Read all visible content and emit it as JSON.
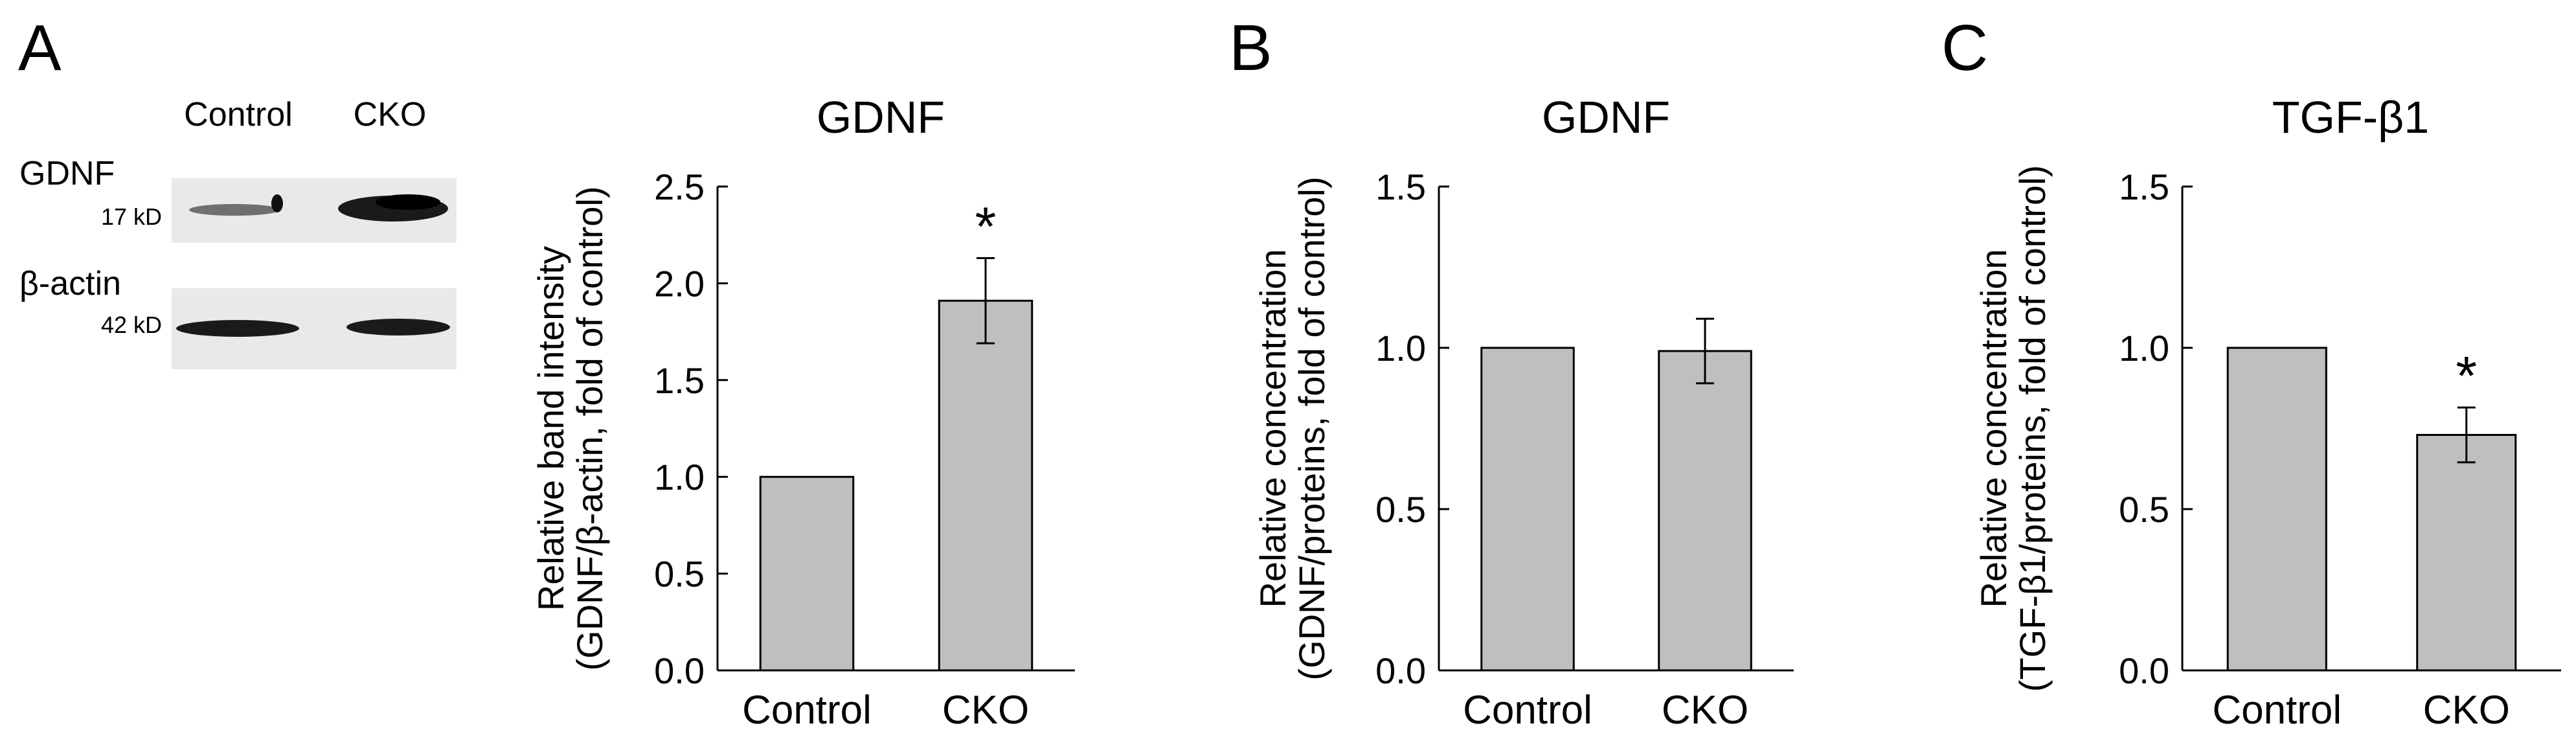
{
  "colors": {
    "bar": "#bfbfbf",
    "axis": "#000000",
    "blot_bg": "#e9e9e9",
    "band": "#1a1a1a"
  },
  "panels": {
    "a": {
      "letter": "A"
    },
    "b": {
      "letter": "B"
    },
    "c": {
      "letter": "C"
    }
  },
  "blot": {
    "lanes": [
      "Control",
      "CKO"
    ],
    "rows": [
      {
        "protein": "GDNF",
        "size": "17 kD"
      },
      {
        "protein": "β-actin",
        "size": "42 kD"
      }
    ]
  },
  "chart_data": [
    {
      "type": "bar",
      "title": "GDNF",
      "categories": [
        "Control",
        "CKO"
      ],
      "values": [
        1.0,
        1.91
      ],
      "errors": [
        0.0,
        0.22
      ],
      "significance": [
        "",
        "*"
      ],
      "ylabel_line1": "Relative band intensity",
      "ylabel_line2": "(GDNF/β-actin, fold of control)",
      "xlabel": "",
      "ylim": [
        0,
        2.5
      ],
      "yticks": [
        0.0,
        0.5,
        1.0,
        1.5,
        2.0,
        2.5
      ],
      "ytick_labels": [
        "0.0",
        "0.5",
        "1.0",
        "1.5",
        "2.0",
        "2.5"
      ]
    },
    {
      "type": "bar",
      "title": "GDNF",
      "categories": [
        "Control",
        "CKO"
      ],
      "values": [
        1.0,
        0.99
      ],
      "errors": [
        0.0,
        0.1
      ],
      "significance": [
        "",
        ""
      ],
      "ylabel_line1": "Relative concentration",
      "ylabel_line2": "(GDNF/proteins, fold of control)",
      "xlabel": "",
      "ylim": [
        0,
        1.5
      ],
      "yticks": [
        0.0,
        0.5,
        1.0,
        1.5
      ],
      "ytick_labels": [
        "0.0",
        "0.5",
        "1.0",
        "1.5"
      ]
    },
    {
      "type": "bar",
      "title": "TGF-β1",
      "categories": [
        "Control",
        "CKO"
      ],
      "values": [
        1.0,
        0.73
      ],
      "errors": [
        0.0,
        0.085
      ],
      "significance": [
        "",
        "*"
      ],
      "ylabel_line1": "Relative concentration",
      "ylabel_line2": "(TGF-β1/proteins, fold of control)",
      "xlabel": "",
      "ylim": [
        0,
        1.5
      ],
      "yticks": [
        0.0,
        0.5,
        1.0,
        1.5
      ],
      "ytick_labels": [
        "0.0",
        "0.5",
        "1.0",
        "1.5"
      ]
    }
  ]
}
